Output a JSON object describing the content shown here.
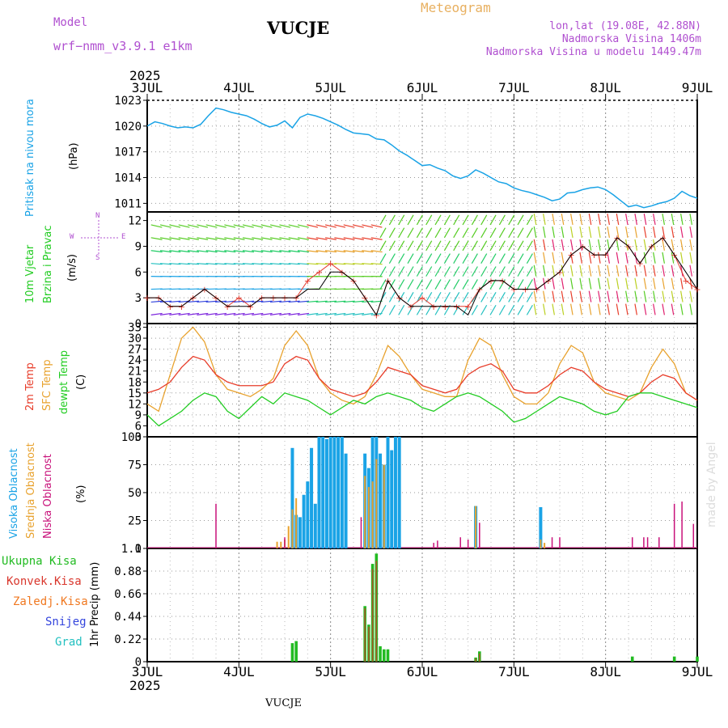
{
  "header": {
    "model_label": "Model",
    "model_name": "wrf−nmm_v3.9.1  e1km",
    "station": "VUCJE",
    "meteogram": "Meteogram",
    "coords": "lon,lat (19.08E, 42.88N)",
    "elevation": "Nadmorska Visina 1406m",
    "model_elevation": "Nadmorska Visina u modelu 1449.47m",
    "year_top": "2025",
    "year_bottom": "2025",
    "footer_station": "VUCJE",
    "credit": "made by Angel"
  },
  "colors": {
    "pressure": "#1aa3e6",
    "wind_speed": "#000000",
    "gust": "#e33a2e",
    "temp2m": "#e83d2a",
    "sfc_temp": "#e8a22e",
    "dewpoint": "#22cc22",
    "high_cloud": "#1aa3e6",
    "mid_cloud": "#e8a22e",
    "low_cloud": "#c8117a",
    "total_precip": "#22bb22",
    "conv_precip": "#d9362c",
    "frozen_precip": "#f07820",
    "snow": "#3344dd",
    "hail": "#22c0c0",
    "purple_text": "#b050d0",
    "orange_text": "#e8b060"
  },
  "time_axis": {
    "labels": [
      "3JUL",
      "4JUL",
      "5JUL",
      "6JUL",
      "7JUL",
      "8JUL",
      "9JUL"
    ],
    "hours": [
      0,
      24,
      48,
      72,
      96,
      120,
      144
    ]
  },
  "panels": {
    "pressure": {
      "label_main": "Pritisak na nivou mora",
      "label_unit": "(hPa)"
    },
    "wind": {
      "label_main1": "10m Vjetar",
      "label_main2": "Brzina i Pravac",
      "label_unit": "(m/s)",
      "compass_w": "W",
      "compass_e": "E",
      "compass_n": "N",
      "compass_s": "S"
    },
    "temperature": {
      "label_2m": "2m Temp",
      "label_sfc": "SFC Temp",
      "label_dew": "dewpt Temp",
      "label_unit": "(C)"
    },
    "cloud": {
      "label_high": "Visoka Oblacnost",
      "label_mid": "Srednja Oblacnost",
      "label_low": "Niska  Oblacnost",
      "label_unit": "(%)"
    },
    "precip": {
      "legend": [
        "Ukupna Kisa",
        "Konvek.Kisa",
        "Zaledj.Kisa",
        "Snijeg",
        "Grad"
      ],
      "label_unit": "1hr Precip (mm)"
    }
  },
  "chart_data": [
    {
      "type": "line",
      "title": "Pritisak na nivou mora",
      "ylabel": "(hPa)",
      "ylim": [
        1010,
        1023
      ],
      "yticks": [
        1011,
        1014,
        1017,
        1020,
        1023
      ],
      "xlim_hours": [
        0,
        144
      ],
      "series": [
        {
          "name": "Pritisak na nivou mora",
          "x": [
            0,
            2,
            4,
            6,
            8,
            10,
            12,
            14,
            16,
            18,
            20,
            22,
            24,
            26,
            28,
            30,
            32,
            34,
            36,
            38,
            40,
            42,
            44,
            46,
            48,
            50,
            52,
            54,
            56,
            58,
            60,
            62,
            64,
            66,
            68,
            70,
            72,
            74,
            76,
            78,
            80,
            82,
            84,
            86,
            88,
            90,
            92,
            94,
            96,
            98,
            100,
            102,
            104,
            106,
            108,
            110,
            112,
            114,
            116,
            118,
            120,
            122,
            124,
            126,
            128,
            130,
            132,
            134,
            136,
            138,
            140,
            142,
            144
          ],
          "y": [
            1020.0,
            1020.5,
            1020.3,
            1020.0,
            1019.8,
            1019.9,
            1019.8,
            1020.2,
            1021.2,
            1022.1,
            1021.9,
            1021.6,
            1021.4,
            1021.2,
            1020.8,
            1020.3,
            1019.9,
            1020.1,
            1020.6,
            1019.8,
            1021.0,
            1021.4,
            1021.2,
            1020.9,
            1020.5,
            1020.1,
            1019.6,
            1019.2,
            1019.1,
            1019.0,
            1018.5,
            1018.4,
            1017.8,
            1017.1,
            1016.6,
            1016.0,
            1015.4,
            1015.5,
            1015.1,
            1014.8,
            1014.2,
            1013.9,
            1014.2,
            1014.9,
            1014.5,
            1014.0,
            1013.5,
            1013.3,
            1012.8,
            1012.5,
            1012.3,
            1012.0,
            1011.7,
            1011.3,
            1011.5,
            1012.2,
            1012.3,
            1012.6,
            1012.8,
            1012.9,
            1012.6,
            1012.0,
            1011.3,
            1010.6,
            1010.8,
            1010.5,
            1010.7,
            1011.0,
            1011.2,
            1011.6,
            1012.4,
            1011.9,
            1011.6
          ]
        }
      ]
    },
    {
      "type": "line",
      "title": "10m Vjetar Brzina i Pravac",
      "ylabel": "(m/s)",
      "ylim": [
        0,
        13
      ],
      "yticks": [
        0,
        3,
        6,
        9,
        12
      ],
      "xlim_hours": [
        0,
        144
      ],
      "series": [
        {
          "name": "wind speed",
          "x": [
            0,
            3,
            6,
            9,
            12,
            15,
            18,
            21,
            24,
            27,
            30,
            33,
            36,
            39,
            42,
            45,
            48,
            51,
            54,
            57,
            60,
            63,
            66,
            69,
            72,
            75,
            78,
            81,
            84,
            87,
            90,
            93,
            96,
            99,
            102,
            105,
            108,
            111,
            114,
            117,
            120,
            123,
            126,
            129,
            132,
            135,
            138,
            141,
            144
          ],
          "y": [
            3,
            3,
            2,
            2,
            3,
            4,
            3,
            2,
            2,
            2,
            3,
            3,
            3,
            3,
            4,
            4,
            6,
            6,
            5,
            3,
            1,
            5,
            3,
            2,
            2,
            2,
            2,
            2,
            1,
            4,
            5,
            5,
            4,
            4,
            4,
            5,
            6,
            8,
            9,
            8,
            8,
            10,
            9,
            7,
            9,
            10,
            8,
            6,
            4
          ]
        },
        {
          "name": "gust",
          "x": [
            0,
            3,
            6,
            9,
            12,
            15,
            18,
            21,
            24,
            27,
            30,
            33,
            36,
            39,
            42,
            45,
            48,
            51,
            54,
            57,
            60,
            63,
            66,
            69,
            72,
            75,
            78,
            81,
            84,
            87,
            90,
            93,
            96,
            99,
            102,
            105,
            108,
            111,
            114,
            117,
            120,
            123,
            126,
            129,
            132,
            135,
            138,
            141,
            144
          ],
          "y": [
            3,
            3,
            2,
            2,
            3,
            4,
            3,
            2,
            3,
            2,
            3,
            3,
            3,
            3,
            5,
            6,
            7,
            6,
            5,
            3,
            1,
            5,
            3,
            2,
            3,
            2,
            2,
            2,
            2,
            4,
            5,
            5,
            4,
            4,
            4,
            5,
            6,
            8,
            9,
            8,
            8,
            10,
            9,
            7,
            9,
            10,
            8,
            5,
            4
          ]
        }
      ]
    },
    {
      "type": "line",
      "title": "Temp",
      "ylabel": "(C)",
      "ylim": [
        3,
        34
      ],
      "yticks": [
        3,
        6,
        9,
        12,
        15,
        18,
        21,
        24,
        27,
        30,
        33
      ],
      "xlim_hours": [
        0,
        144
      ],
      "series": [
        {
          "name": "2m Temp",
          "x": [
            0,
            3,
            6,
            9,
            12,
            15,
            18,
            21,
            24,
            27,
            30,
            33,
            36,
            39,
            42,
            45,
            48,
            51,
            54,
            57,
            60,
            63,
            66,
            69,
            72,
            75,
            78,
            81,
            84,
            87,
            90,
            93,
            96,
            99,
            102,
            105,
            108,
            111,
            114,
            117,
            120,
            123,
            126,
            129,
            132,
            135,
            138,
            141,
            144
          ],
          "y": [
            15,
            16,
            18,
            22,
            25,
            24,
            20,
            18,
            17,
            17,
            17,
            18,
            23,
            25,
            24,
            19,
            16,
            15,
            14,
            15,
            18,
            22,
            21,
            20,
            17,
            16,
            15,
            16,
            20,
            22,
            23,
            21,
            16,
            15,
            15,
            17,
            20,
            22,
            21,
            18,
            16,
            15,
            14,
            15,
            18,
            20,
            19,
            15,
            13
          ]
        },
        {
          "name": "SFC Temp",
          "x": [
            0,
            3,
            6,
            9,
            12,
            15,
            18,
            21,
            24,
            27,
            30,
            33,
            36,
            39,
            42,
            45,
            48,
            51,
            54,
            57,
            60,
            63,
            66,
            69,
            72,
            75,
            78,
            81,
            84,
            87,
            90,
            93,
            96,
            99,
            102,
            105,
            108,
            111,
            114,
            117,
            120,
            123,
            126,
            129,
            132,
            135,
            138,
            141,
            144
          ],
          "y": [
            12,
            10,
            20,
            30,
            33,
            29,
            20,
            16,
            15,
            14,
            16,
            19,
            28,
            32,
            28,
            19,
            15,
            13,
            12,
            14,
            20,
            28,
            25,
            20,
            16,
            15,
            14,
            14,
            24,
            30,
            28,
            20,
            14,
            12,
            12,
            15,
            23,
            28,
            26,
            18,
            15,
            14,
            13,
            15,
            22,
            27,
            23,
            15,
            13
          ]
        },
        {
          "name": "dewpt Temp",
          "x": [
            0,
            3,
            6,
            9,
            12,
            15,
            18,
            21,
            24,
            27,
            30,
            33,
            36,
            39,
            42,
            45,
            48,
            51,
            54,
            57,
            60,
            63,
            66,
            69,
            72,
            75,
            78,
            81,
            84,
            87,
            90,
            93,
            96,
            99,
            102,
            105,
            108,
            111,
            114,
            117,
            120,
            123,
            126,
            129,
            132,
            135,
            138,
            141,
            144
          ],
          "y": [
            9,
            6,
            8,
            10,
            13,
            15,
            14,
            10,
            8,
            11,
            14,
            12,
            15,
            14,
            13,
            11,
            9,
            11,
            13,
            12,
            14,
            15,
            14,
            13,
            11,
            10,
            12,
            14,
            15,
            14,
            12,
            10,
            7,
            8,
            10,
            12,
            14,
            13,
            12,
            10,
            9,
            10,
            14,
            15,
            15,
            14,
            13,
            12,
            11
          ]
        }
      ]
    },
    {
      "type": "bar",
      "title": "Oblacnost",
      "ylabel": "(%)",
      "ylim": [
        0,
        100
      ],
      "yticks": [
        0,
        25,
        50,
        75,
        100
      ],
      "xlim_hours": [
        0,
        144
      ],
      "series": [
        {
          "name": "Visoka Oblacnost",
          "x": [
            38,
            39,
            40,
            41,
            42,
            43,
            44,
            45,
            46,
            47,
            48,
            49,
            50,
            51,
            52,
            57,
            58,
            59,
            60,
            61,
            62,
            63,
            64,
            65,
            66,
            86,
            103
          ],
          "y": [
            90,
            30,
            28,
            48,
            60,
            90,
            40,
            100,
            100,
            98,
            100,
            100,
            100,
            100,
            85,
            85,
            72,
            100,
            100,
            85,
            75,
            100,
            88,
            100,
            100,
            38,
            37
          ]
        },
        {
          "name": "Srednja Oblacnost",
          "x": [
            34,
            35,
            36,
            37,
            38,
            39,
            57,
            58,
            59,
            60,
            62,
            86,
            103,
            104
          ],
          "y": [
            6,
            6,
            8,
            20,
            35,
            45,
            65,
            55,
            60,
            80,
            75,
            38,
            8,
            5
          ]
        },
        {
          "name": "Niska  Oblacnost",
          "x": [
            18,
            36,
            56,
            75,
            76,
            82,
            84,
            87,
            106,
            108,
            127,
            130,
            131,
            134,
            138,
            140,
            143
          ],
          "y": [
            40,
            10,
            28,
            5,
            7,
            10,
            8,
            23,
            10,
            10,
            10,
            10,
            10,
            10,
            40,
            42,
            22
          ]
        }
      ]
    },
    {
      "type": "bar",
      "title": "1hr Precip",
      "ylabel": "1hr Precip (mm)",
      "ylim": [
        0,
        1.1
      ],
      "yticks": [
        0,
        0.22,
        0.44,
        0.66,
        0.88,
        1.1
      ],
      "xlim_hours": [
        0,
        144
      ],
      "series": [
        {
          "name": "Ukupna Kisa",
          "x": [
            38,
            39,
            57,
            58,
            59,
            60,
            61,
            62,
            63,
            86,
            87,
            127,
            138,
            144
          ],
          "y": [
            0.18,
            0.2,
            0.54,
            0.36,
            0.95,
            1.05,
            0.15,
            0.12,
            0.12,
            0.04,
            0.1,
            0.05,
            0.05,
            0.05
          ]
        },
        {
          "name": "Konvek.Kisa",
          "x": [
            57,
            58,
            59,
            60,
            86,
            87
          ],
          "y": [
            0.52,
            0.34,
            0.9,
            0.98,
            0.03,
            0.08
          ]
        }
      ]
    }
  ]
}
